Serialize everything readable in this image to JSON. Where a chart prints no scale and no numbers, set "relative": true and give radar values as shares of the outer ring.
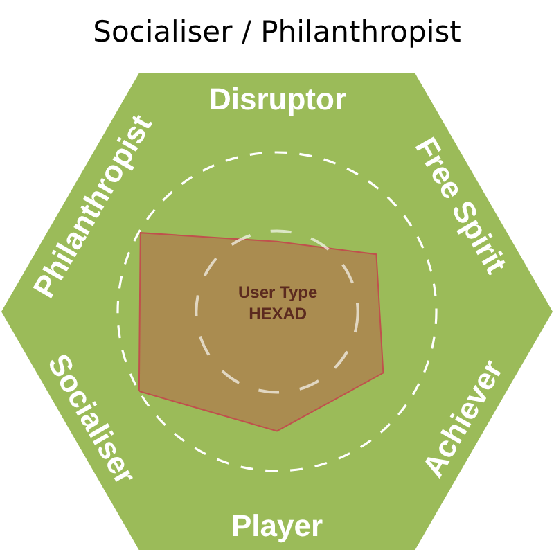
{
  "chart_data": {
    "type": "radar",
    "title": "Socialiser / Philanthropist",
    "relative": true,
    "categories": [
      "Disruptor",
      "Free Spirit",
      "Achiever",
      "Player",
      "Socialiser",
      "Philanthropist"
    ],
    "series": [
      {
        "color": "#aa8c50",
        "values": [
          0.44,
          0.72,
          0.77,
          0.75,
          1.0,
          0.99
        ]
      }
    ],
    "annotations": [
      "User Type\nHEXAD"
    ]
  }
}
